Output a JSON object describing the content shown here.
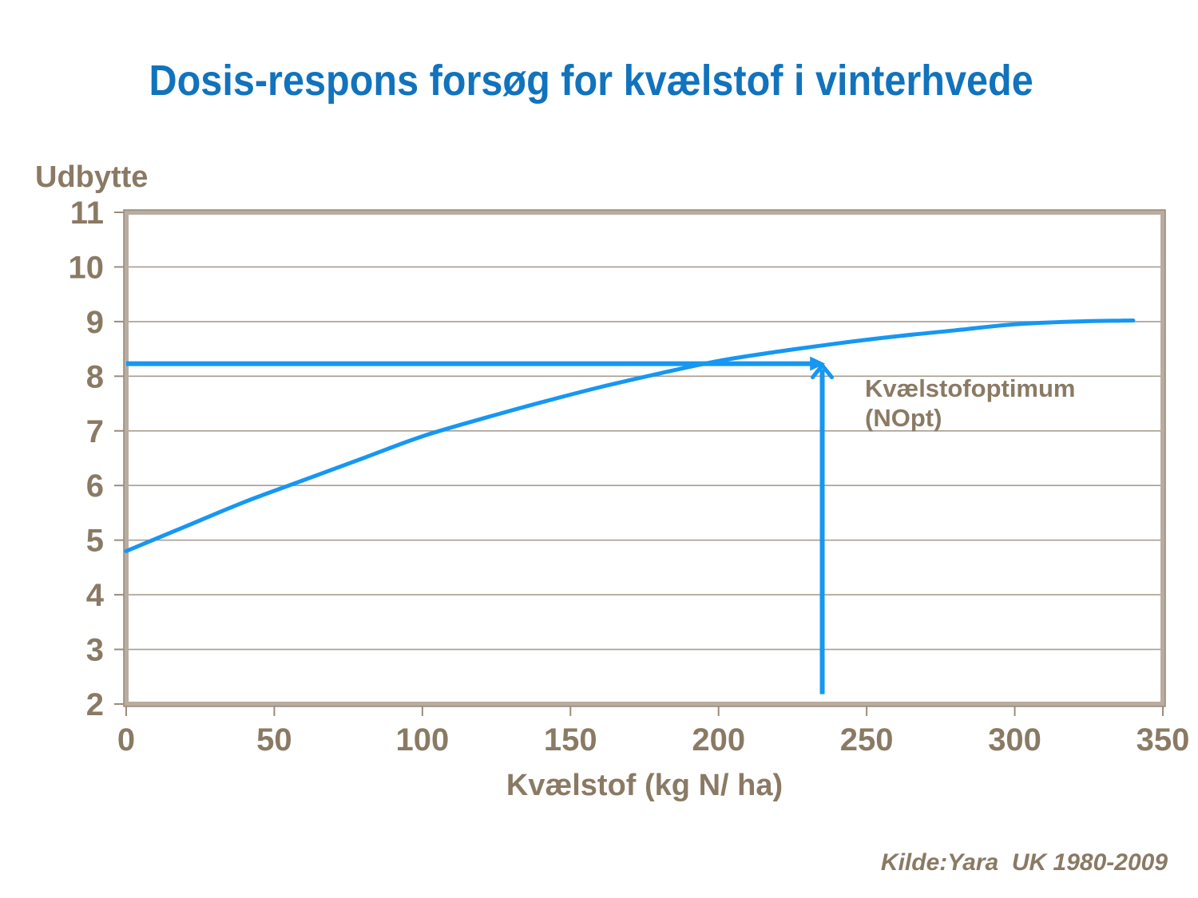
{
  "slide": {
    "title": "Dosis-respons forsøg for kvælstof i vinterhvede",
    "source_note": "Kilde:Yara  UK 1980-2009"
  },
  "colors": {
    "title_blue": "#1173bd",
    "curve_blue": "#1697f2",
    "axis_text_brown": "#8a7a64",
    "gridline": "#a89d90",
    "frame_light": "#b9ada0",
    "frame_dark": "#95887a",
    "tick": "#9b8c7b",
    "background": "#ffffff"
  },
  "chart_data": {
    "type": "line",
    "title": "Dosis-respons forsøg for kvælstof i vinterhvede",
    "xlabel": "Kvælstof (kg N/ ha)",
    "ylabel": "Udbytte",
    "xlim": [
      0,
      350
    ],
    "ylim": [
      2,
      11
    ],
    "x_ticks": [
      0,
      50,
      100,
      150,
      200,
      250,
      300,
      350
    ],
    "y_ticks": [
      2,
      3,
      4,
      5,
      6,
      7,
      8,
      9,
      10,
      11
    ],
    "grid": "horizontal-only",
    "legend": "none",
    "series": [
      {
        "name": "yield-response-curve",
        "x": [
          0,
          20,
          40,
          60,
          80,
          100,
          120,
          140,
          160,
          180,
          200,
          220,
          240,
          260,
          280,
          300,
          320,
          340
        ],
        "y": [
          4.8,
          5.25,
          5.7,
          6.1,
          6.5,
          6.9,
          7.22,
          7.52,
          7.8,
          8.05,
          8.28,
          8.45,
          8.6,
          8.73,
          8.84,
          8.95,
          9.0,
          9.02
        ]
      }
    ],
    "annotations": {
      "optimum_label_line1": "Kvælstofoptimum",
      "optimum_label_line2": "(NOpt)",
      "horizontal_arrow": {
        "y": 8.23,
        "x_from": 0,
        "x_to": 236
      },
      "vertical_arrow": {
        "x": 235,
        "y_from": 2.18,
        "y_to": 8.2
      }
    }
  }
}
